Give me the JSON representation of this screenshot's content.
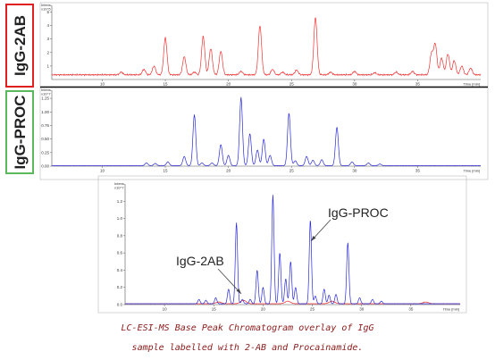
{
  "labels": {
    "top_panel": "IgG-2AB",
    "mid_panel": "IgG-PROC",
    "overlay_2ab": "IgG-2AB",
    "overlay_proc": "IgG-PROC"
  },
  "caption": {
    "line1": "LC-ESI-MS Base Peak Chromatogram overlay of IgG",
    "line2": "sample labelled with 2-AB and Procainamide."
  },
  "colors": {
    "series_2ab": "#ee3333",
    "series_proc": "#2a2ad8",
    "box_2ab": "#e02020",
    "box_proc": "#5cb85c"
  },
  "chart_data": [
    {
      "type": "line",
      "name": "top-chart",
      "series": [
        {
          "name": "IgG-2AB"
        }
      ],
      "xlim": [
        6,
        40
      ],
      "ylim": [
        0,
        5.5
      ],
      "xticks": [
        10,
        15,
        20,
        25,
        30,
        35
      ],
      "yticks": [
        1,
        2,
        3,
        4,
        5
      ],
      "xtick_labels": [
        "10",
        "15",
        "20",
        "25",
        "30",
        "35"
      ],
      "ytick_labels": [
        "1",
        "2",
        "3",
        "4",
        "5"
      ],
      "ylabel": "Intens.",
      "yunit": "x10^5",
      "xlabel": "Time [min]",
      "baseline": 0.35,
      "peaks": [
        {
          "x": 11.5,
          "y": 0.55
        },
        {
          "x": 13.3,
          "y": 0.75
        },
        {
          "x": 14.1,
          "y": 1.0
        },
        {
          "x": 15.0,
          "y": 3.1
        },
        {
          "x": 16.5,
          "y": 1.7
        },
        {
          "x": 17.3,
          "y": 0.55
        },
        {
          "x": 18.0,
          "y": 3.2
        },
        {
          "x": 18.6,
          "y": 2.3
        },
        {
          "x": 19.4,
          "y": 2.1
        },
        {
          "x": 21.0,
          "y": 0.6
        },
        {
          "x": 22.5,
          "y": 4.0
        },
        {
          "x": 23.5,
          "y": 0.75
        },
        {
          "x": 24.3,
          "y": 0.55
        },
        {
          "x": 25.4,
          "y": 0.7
        },
        {
          "x": 26.9,
          "y": 4.6
        },
        {
          "x": 28.1,
          "y": 0.55
        },
        {
          "x": 30.0,
          "y": 0.6
        },
        {
          "x": 31.6,
          "y": 0.5
        },
        {
          "x": 33.3,
          "y": 0.55
        },
        {
          "x": 34.6,
          "y": 0.6
        },
        {
          "x": 36.1,
          "y": 1.9
        },
        {
          "x": 36.4,
          "y": 2.6
        },
        {
          "x": 36.9,
          "y": 1.6
        },
        {
          "x": 37.4,
          "y": 1.9
        },
        {
          "x": 37.9,
          "y": 1.4
        },
        {
          "x": 38.5,
          "y": 1.0
        },
        {
          "x": 39.2,
          "y": 0.85
        }
      ]
    },
    {
      "type": "line",
      "name": "mid-chart",
      "series": [
        {
          "name": "IgG-PROC"
        }
      ],
      "xlim": [
        6,
        40
      ],
      "ylim": [
        0,
        1.4
      ],
      "xticks": [
        10,
        15,
        20,
        25,
        30,
        35
      ],
      "yticks": [
        0.0,
        0.25,
        0.5,
        0.75,
        1.0,
        1.25
      ],
      "xtick_labels": [
        "10",
        "15",
        "20",
        "25",
        "30",
        "35"
      ],
      "ytick_labels": [
        "0.00",
        "0.25",
        "0.50",
        "0.75",
        "1.00",
        "1.25"
      ],
      "ylabel": "Intens.",
      "yunit": "x10^7",
      "xlabel": "Time [min]",
      "baseline": 0.01,
      "peaks": [
        {
          "x": 13.5,
          "y": 0.06
        },
        {
          "x": 14.2,
          "y": 0.05
        },
        {
          "x": 15.2,
          "y": 0.08
        },
        {
          "x": 16.5,
          "y": 0.18
        },
        {
          "x": 17.3,
          "y": 0.95
        },
        {
          "x": 17.9,
          "y": 0.06
        },
        {
          "x": 18.7,
          "y": 0.06
        },
        {
          "x": 19.4,
          "y": 0.4
        },
        {
          "x": 20.0,
          "y": 0.2
        },
        {
          "x": 21.0,
          "y": 1.27
        },
        {
          "x": 21.7,
          "y": 0.6
        },
        {
          "x": 22.3,
          "y": 0.3
        },
        {
          "x": 22.8,
          "y": 0.5
        },
        {
          "x": 23.3,
          "y": 0.2
        },
        {
          "x": 24.8,
          "y": 0.98
        },
        {
          "x": 25.3,
          "y": 0.1
        },
        {
          "x": 26.2,
          "y": 0.18
        },
        {
          "x": 26.7,
          "y": 0.11
        },
        {
          "x": 27.4,
          "y": 0.12
        },
        {
          "x": 28.6,
          "y": 0.72
        },
        {
          "x": 29.8,
          "y": 0.08
        },
        {
          "x": 31.1,
          "y": 0.06
        },
        {
          "x": 32.0,
          "y": 0.04
        }
      ]
    },
    {
      "type": "line",
      "name": "overlay-chart",
      "series": [
        {
          "name": "IgG-2AB"
        },
        {
          "name": "IgG-PROC"
        }
      ],
      "xlim": [
        6,
        40
      ],
      "ylim": [
        0,
        1.4
      ],
      "xticks": [
        10,
        15,
        20,
        25,
        30,
        35
      ],
      "yticks": [
        0.0,
        0.2,
        0.4,
        0.6,
        0.8,
        1.0,
        1.2
      ],
      "xtick_labels": [
        "10",
        "15",
        "20",
        "25",
        "30",
        "35"
      ],
      "ytick_labels": [
        "0.0",
        "0.2",
        "0.4",
        "0.6",
        "0.8",
        "1.0",
        "1.2"
      ],
      "ylabel": "Intens.",
      "yunit": "x10^7",
      "xlabel": "Time [min]",
      "baseline_2ab": 0.01,
      "peaks_2ab": [
        {
          "x": 15.5,
          "y": 0.03
        },
        {
          "x": 18.0,
          "y": 0.05
        },
        {
          "x": 22.5,
          "y": 0.04
        },
        {
          "x": 27.0,
          "y": 0.04
        },
        {
          "x": 36.5,
          "y": 0.03
        }
      ]
    }
  ]
}
